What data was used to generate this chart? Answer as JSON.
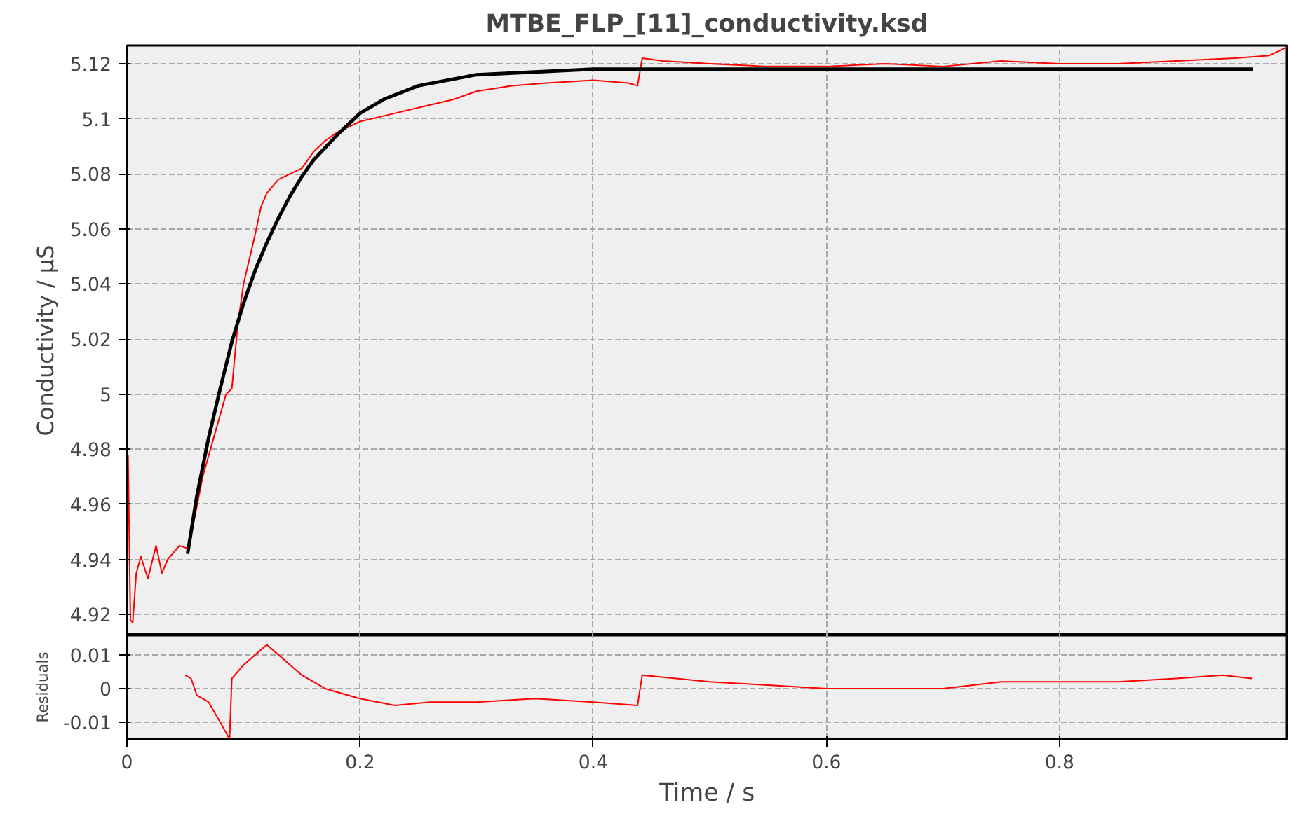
{
  "chart_data": [
    {
      "type": "line",
      "title": "MTBE_FLP_[11]_conductivity.ksd",
      "ylabel": "Conductivity / µS",
      "xlim": [
        0,
        0.995
      ],
      "ylim": [
        4.9124,
        5.1266
      ],
      "xticks": [
        {
          "value": 0,
          "label": null
        },
        {
          "value": 0.2,
          "label": null
        },
        {
          "value": 0.4,
          "label": null
        },
        {
          "value": 0.6,
          "label": null
        },
        {
          "value": 0.8,
          "label": null
        }
      ],
      "yticks": [
        4.92,
        4.94,
        4.96,
        4.98,
        {
          "value": 5.0,
          "label": "5"
        },
        5.02,
        5.04,
        5.06,
        5.08,
        {
          "value": 5.1,
          "label": "5.1"
        },
        5.12
      ],
      "tick_labels": "y",
      "grid": true,
      "line_style": "solid",
      "series": [
        {
          "color": "#ff0000",
          "x": [
            0.001,
            0.003,
            0.005,
            0.008,
            0.012,
            0.018,
            0.025,
            0.03,
            0.035,
            0.045,
            0.052,
            0.058,
            0.065,
            0.075,
            0.085,
            0.09,
            0.095,
            0.1,
            0.11,
            0.115,
            0.12,
            0.13,
            0.14,
            0.15,
            0.16,
            0.17,
            0.18,
            0.2,
            0.22,
            0.25,
            0.28,
            0.3,
            0.33,
            0.36,
            0.4,
            0.43,
            0.438,
            0.442,
            0.46,
            0.5,
            0.55,
            0.6,
            0.65,
            0.7,
            0.75,
            0.8,
            0.85,
            0.9,
            0.95,
            0.98,
            0.995
          ],
          "values": [
            4.978,
            4.918,
            4.917,
            4.935,
            4.941,
            4.933,
            4.945,
            4.935,
            4.94,
            4.945,
            4.944,
            4.955,
            4.97,
            4.985,
            5.0,
            5.002,
            5.025,
            5.04,
            5.058,
            5.068,
            5.073,
            5.078,
            5.08,
            5.082,
            5.088,
            5.092,
            5.095,
            5.099,
            5.101,
            5.104,
            5.107,
            5.11,
            5.112,
            5.113,
            5.114,
            5.113,
            5.112,
            5.122,
            5.121,
            5.12,
            5.119,
            5.119,
            5.12,
            5.119,
            5.121,
            5.12,
            5.12,
            5.121,
            5.122,
            5.123,
            5.126
          ]
        },
        {
          "color": "#000000",
          "x": [
            0.052,
            0.06,
            0.07,
            0.08,
            0.09,
            0.1,
            0.11,
            0.12,
            0.13,
            0.14,
            0.15,
            0.16,
            0.18,
            0.2,
            0.22,
            0.25,
            0.3,
            0.35,
            0.4,
            0.966
          ],
          "values": [
            4.942,
            4.963,
            4.984,
            5.002,
            5.019,
            5.033,
            5.045,
            5.055,
            5.064,
            5.072,
            5.079,
            5.085,
            5.094,
            5.102,
            5.107,
            5.112,
            5.116,
            5.117,
            5.118,
            5.118
          ]
        }
      ]
    },
    {
      "type": "line",
      "xlabel": "Time / s",
      "ylabel": "Residuals",
      "xlim": [
        0,
        0.995
      ],
      "ylim": [
        -0.015,
        0.0158
      ],
      "xticks": [
        0,
        0.2,
        0.4,
        0.6,
        0.8
      ],
      "yticks": [
        -0.01,
        0,
        0.01
      ],
      "grid": true,
      "line_style": "solid",
      "series": [
        {
          "color": "#ff0000",
          "x": [
            0.05,
            0.055,
            0.06,
            0.07,
            0.08,
            0.088,
            0.09,
            0.1,
            0.11,
            0.12,
            0.13,
            0.15,
            0.17,
            0.2,
            0.23,
            0.26,
            0.3,
            0.35,
            0.4,
            0.438,
            0.442,
            0.5,
            0.55,
            0.6,
            0.65,
            0.7,
            0.75,
            0.8,
            0.85,
            0.9,
            0.94,
            0.965
          ],
          "values": [
            0.004,
            0.003,
            -0.002,
            -0.004,
            -0.01,
            -0.015,
            0.003,
            0.007,
            0.01,
            0.013,
            0.01,
            0.004,
            0.0,
            -0.003,
            -0.005,
            -0.004,
            -0.004,
            -0.003,
            -0.004,
            -0.005,
            0.004,
            0.002,
            0.001,
            0.0,
            0.0,
            0.0,
            0.002,
            0.002,
            0.002,
            0.003,
            0.004,
            0.003
          ]
        }
      ]
    }
  ]
}
